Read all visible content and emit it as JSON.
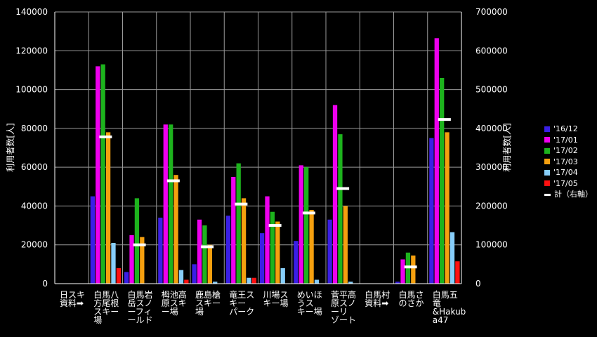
{
  "chart_data": {
    "type": "bar",
    "title": "",
    "ylabel_left": "利用者数[人]",
    "ylabel_right": "利用者数[人]",
    "ylim_left": [
      0,
      140000
    ],
    "ylim_right": [
      0,
      700000
    ],
    "yticks_left": [
      "0",
      "20000",
      "40000",
      "60000",
      "80000",
      "100000",
      "120000",
      "140000"
    ],
    "yticks_right": [
      "0",
      "100000",
      "200000",
      "300000",
      "400000",
      "500000",
      "600000",
      "700000"
    ],
    "grid": true,
    "legend_position": "right",
    "categories": [
      "日スキ\n資料➡",
      "白馬八\n方尾根\nスキー\n場",
      "白馬岩\n岳スノ\nーフィ\nールド",
      "栂池高\n原スキ\nー場",
      "鹿島槍\nスキー\n場",
      "竜王ス\nキー\nパーク",
      "川場ス\nキー場",
      "めいほ\nうス\nキー場",
      "菅平高\n原スノ\nーリ\nゾート",
      "白馬村\n資料➡",
      "白馬さ\nのさか",
      "白馬五\n竜\n&Hakub\na47"
    ],
    "series": [
      {
        "name": "'16/12",
        "color": "#3a1fe6",
        "axis": "left",
        "values": [
          null,
          45000,
          6000,
          34000,
          10000,
          35000,
          26000,
          22000,
          33000,
          null,
          1000,
          75000
        ]
      },
      {
        "name": "'17/01",
        "color": "#ee00ee",
        "axis": "left",
        "values": [
          null,
          112000,
          25000,
          82000,
          33000,
          55000,
          45000,
          61000,
          92000,
          null,
          12500,
          126500
        ]
      },
      {
        "name": "'17/02",
        "color": "#1db31d",
        "axis": "left",
        "values": [
          null,
          113000,
          44000,
          82000,
          30000,
          62000,
          37000,
          60000,
          77000,
          null,
          16000,
          106000
        ]
      },
      {
        "name": "'17/03",
        "color": "#f5a00f",
        "axis": "left",
        "values": [
          null,
          78000,
          24000,
          56000,
          20000,
          44000,
          32000,
          38000,
          40000,
          null,
          14500,
          78000
        ]
      },
      {
        "name": "'17/04",
        "color": "#87cefa",
        "axis": "left",
        "values": [
          null,
          21000,
          null,
          7000,
          1000,
          3000,
          8000,
          2000,
          1000,
          null,
          null,
          26500
        ]
      },
      {
        "name": "'17/05",
        "color": "#ff1010",
        "axis": "left",
        "values": [
          null,
          8000,
          null,
          2000,
          null,
          3000,
          null,
          null,
          null,
          null,
          null,
          11500
        ]
      },
      {
        "name": "計（右軸）",
        "color": "#ffffff",
        "axis": "right",
        "marker": "dash",
        "values": [
          null,
          378000,
          100000,
          265000,
          95000,
          205000,
          150000,
          182000,
          245000,
          null,
          43000,
          423000
        ]
      }
    ]
  }
}
